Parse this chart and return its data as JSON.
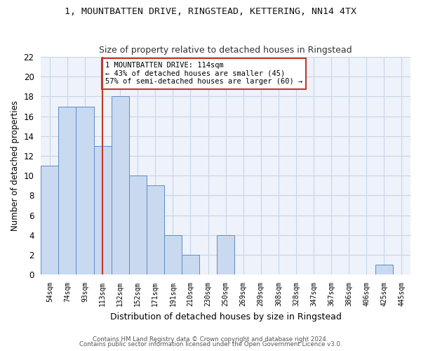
{
  "title_line1": "1, MOUNTBATTEN DRIVE, RINGSTEAD, KETTERING, NN14 4TX",
  "title_line2": "Size of property relative to detached houses in Ringstead",
  "xlabel": "Distribution of detached houses by size in Ringstead",
  "ylabel": "Number of detached properties",
  "categories": [
    "54sqm",
    "74sqm",
    "93sqm",
    "113sqm",
    "132sqm",
    "152sqm",
    "171sqm",
    "191sqm",
    "210sqm",
    "230sqm",
    "250sqm",
    "269sqm",
    "289sqm",
    "308sqm",
    "328sqm",
    "347sqm",
    "367sqm",
    "386sqm",
    "406sqm",
    "425sqm",
    "445sqm"
  ],
  "values": [
    11,
    17,
    17,
    13,
    18,
    10,
    9,
    4,
    2,
    0,
    4,
    0,
    0,
    0,
    0,
    0,
    0,
    0,
    0,
    1,
    0
  ],
  "bar_color": "#c9d9f0",
  "bar_edge_color": "#5b8ec4",
  "vline_x": 3,
  "vline_color": "#c0392b",
  "ylim": [
    0,
    22
  ],
  "yticks": [
    0,
    2,
    4,
    6,
    8,
    10,
    12,
    14,
    16,
    18,
    20,
    22
  ],
  "annotation_text": "1 MOUNTBATTEN DRIVE: 114sqm\n← 43% of detached houses are smaller (45)\n57% of semi-detached houses are larger (60) →",
  "annotation_box_color": "#ffffff",
  "annotation_box_edge": "#c0392b",
  "footer_line1": "Contains HM Land Registry data © Crown copyright and database right 2024.",
  "footer_line2": "Contains public sector information licensed under the Open Government Licence v3.0.",
  "background_color": "#eef2fa",
  "grid_color": "#c8d4e8"
}
